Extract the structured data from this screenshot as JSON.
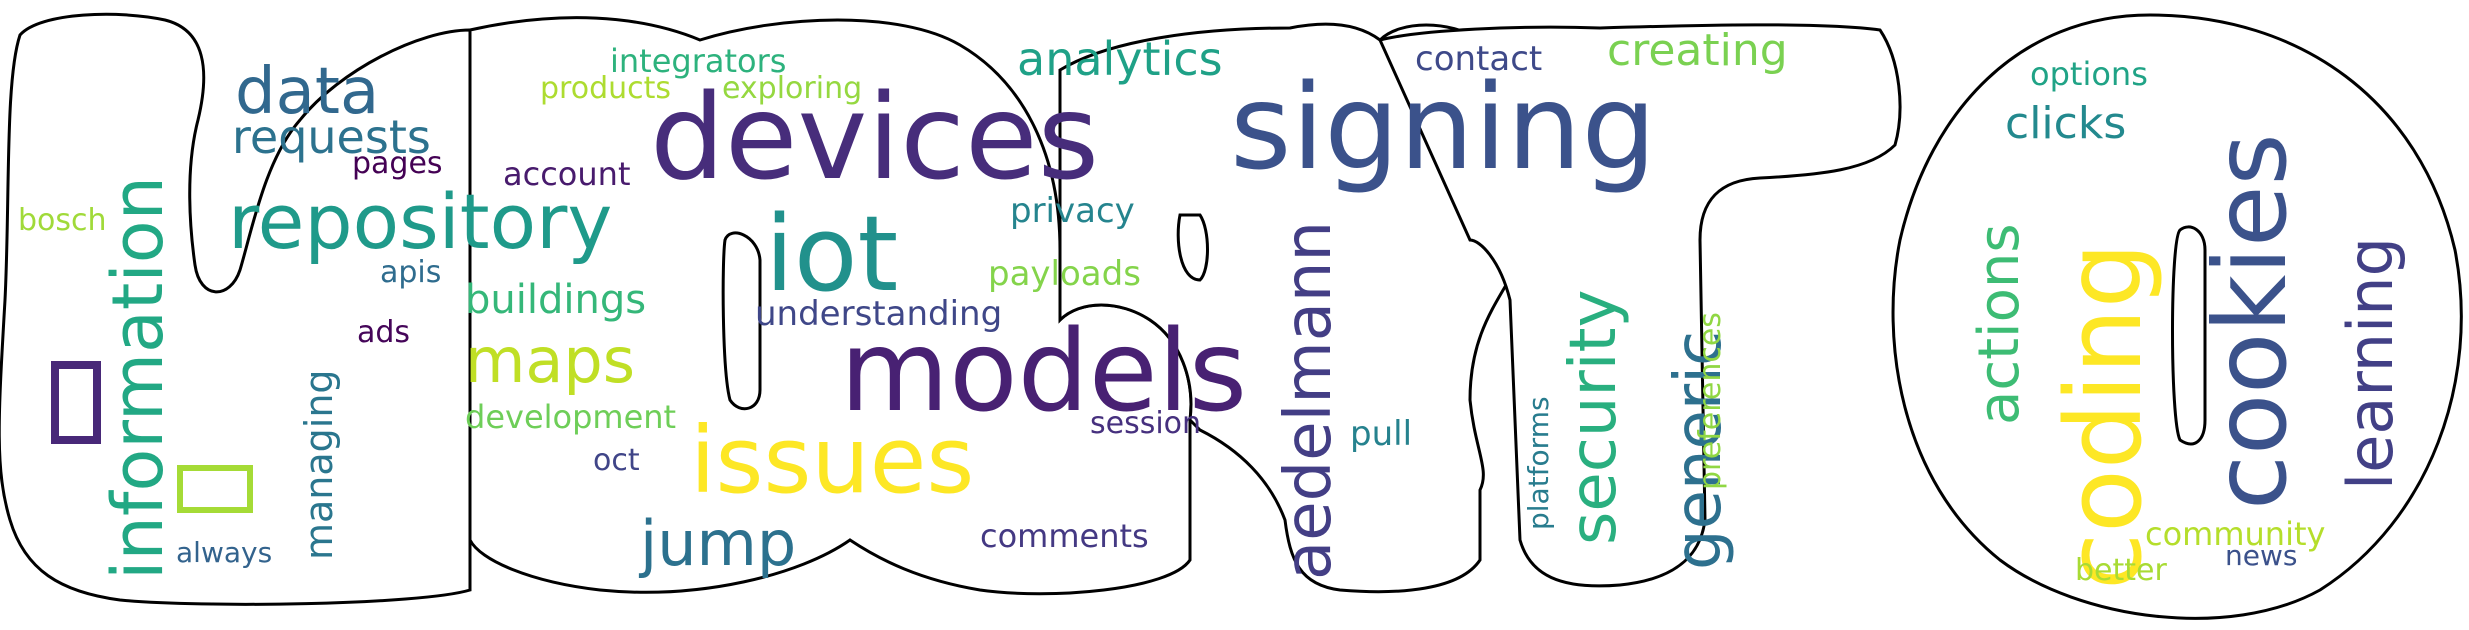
{
  "cloud": {
    "outline_color": "#000000",
    "words": [
      {
        "text": "devices",
        "color": "#472d7b"
      },
      {
        "text": "signing",
        "color": "#3b528b"
      },
      {
        "text": "models",
        "color": "#482173"
      },
      {
        "text": "issues",
        "color": "#fde725"
      },
      {
        "text": "iot",
        "color": "#21918c"
      },
      {
        "text": "repository",
        "color": "#1f9a8a"
      },
      {
        "text": "data",
        "color": "#31688e"
      },
      {
        "text": "requests",
        "color": "#2c728e"
      },
      {
        "text": "information",
        "color": "#22a884"
      },
      {
        "text": "maps",
        "color": "#c0df25"
      },
      {
        "text": "jump",
        "color": "#2c718e"
      },
      {
        "text": "buildings",
        "color": "#35b779"
      },
      {
        "text": "analytics",
        "color": "#1fa187"
      },
      {
        "text": "creating",
        "color": "#7ad151"
      },
      {
        "text": "contact",
        "color": "#3e4989"
      },
      {
        "text": "integrators",
        "color": "#2db27d"
      },
      {
        "text": "products",
        "color": "#addc30"
      },
      {
        "text": "exploring",
        "color": "#95d840"
      },
      {
        "text": "pages",
        "color": "#440154"
      },
      {
        "text": "account",
        "color": "#481b6d"
      },
      {
        "text": "bosch",
        "color": "#a0da39"
      },
      {
        "text": "apis",
        "color": "#2f6c8e"
      },
      {
        "text": "ads",
        "color": "#450559"
      },
      {
        "text": "managing",
        "color": "#2a768e"
      },
      {
        "text": "always",
        "color": "#33638d"
      },
      {
        "text": "development",
        "color": "#6ece58"
      },
      {
        "text": "oct",
        "color": "#404588"
      },
      {
        "text": "understanding",
        "color": "#3f4788"
      },
      {
        "text": "payloads",
        "color": "#84d44b"
      },
      {
        "text": "privacy",
        "color": "#25848e"
      },
      {
        "text": "session",
        "color": "#46307e"
      },
      {
        "text": "comments",
        "color": "#443983"
      },
      {
        "text": "aedelmann",
        "color": "#433e85"
      },
      {
        "text": "pull",
        "color": "#26828e"
      },
      {
        "text": "security",
        "color": "#29af7f"
      },
      {
        "text": "generic",
        "color": "#2d708e"
      },
      {
        "text": "platforms",
        "color": "#287c8e"
      },
      {
        "text": "preferences",
        "color": "#90d743"
      },
      {
        "text": "options",
        "color": "#20a386"
      },
      {
        "text": "clicks",
        "color": "#23898e"
      },
      {
        "text": "actions",
        "color": "#3dbc74"
      },
      {
        "text": "coding",
        "color": "#fde725"
      },
      {
        "text": "cookies",
        "color": "#3b528b"
      },
      {
        "text": "learning",
        "color": "#424086"
      },
      {
        "text": "community",
        "color": "#b5de2b"
      },
      {
        "text": "news",
        "color": "#3b518b"
      },
      {
        "text": "better",
        "color": "#a8db34"
      }
    ],
    "rect_colors": [
      "#482878",
      "#a5db36"
    ]
  }
}
